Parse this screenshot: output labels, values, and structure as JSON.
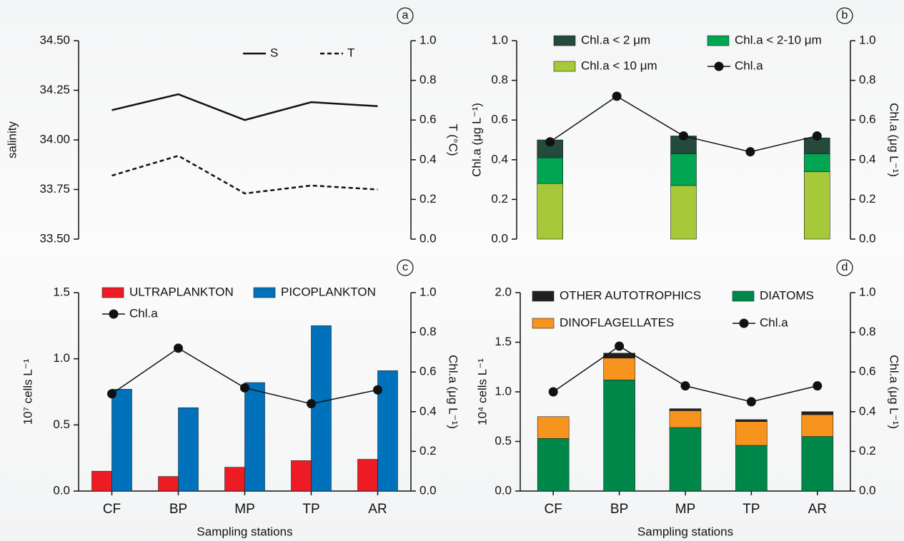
{
  "chart_data": [
    {
      "type": "line",
      "panel_label": "a",
      "categories": [
        null,
        null,
        null,
        null,
        null
      ],
      "y_label": "salinity",
      "y2_label": "T (°C)",
      "ylim": [
        33.5,
        34.5
      ],
      "yticks": [
        {
          "value": 33.5,
          "label": "33.50"
        },
        33.75,
        {
          "value": 34,
          "label": "34.00"
        },
        34.25,
        {
          "value": 34.5,
          "label": "34.50"
        }
      ],
      "y2lim": [
        0,
        1
      ],
      "y2ticks": [
        {
          "value": 0,
          "label": "0.0"
        },
        0.2,
        0.4,
        0.6,
        0.8,
        {
          "value": 1,
          "label": "1.0"
        }
      ],
      "series": [
        {
          "name": "S",
          "color": "#111111",
          "line_style": "solid",
          "values": [
            34.15,
            34.23,
            34.1,
            34.19,
            34.17
          ]
        },
        {
          "name": "T",
          "color": "#111111",
          "line_style": "dashed",
          "axis": "y2",
          "values": [
            0.32,
            0.42,
            0.23,
            0.27,
            0.25
          ]
        }
      ]
    },
    {
      "type": "bar",
      "panel_label": "b",
      "stacked": true,
      "categories": [
        null,
        null,
        null,
        null,
        null
      ],
      "y_label": "Chl.a (μg L⁻¹)",
      "y2_label": "Chl.a (μg L⁻¹)",
      "ylim": [
        0,
        1
      ],
      "yticks": [
        {
          "value": 0,
          "label": "0.0"
        },
        0.2,
        0.4,
        0.6,
        0.8,
        {
          "value": 1,
          "label": "1.0"
        }
      ],
      "y2lim": [
        0,
        1
      ],
      "y2ticks": [
        {
          "value": 0,
          "label": "0.0"
        },
        0.2,
        0.4,
        0.6,
        0.8,
        {
          "value": 1,
          "label": "1.0"
        }
      ],
      "series": [
        {
          "name": "Chl.a < 10 μm",
          "color": "#a6c93a",
          "values": [
            0.28,
            null,
            0.27,
            null,
            0.34
          ]
        },
        {
          "name": "Chl.a < 2-10 μm",
          "color": "#00a651",
          "values": [
            0.13,
            null,
            0.16,
            null,
            0.09
          ]
        },
        {
          "name": "Chl.a < 2 μm",
          "color": "#234a3a",
          "values": [
            0.09,
            null,
            0.09,
            null,
            0.08
          ]
        },
        {
          "name": "Chl.a",
          "type": "line",
          "marker": "circle",
          "axis": "y2",
          "color": "#111111",
          "values": [
            0.49,
            0.72,
            0.52,
            0.44,
            0.52
          ]
        }
      ]
    },
    {
      "type": "bar",
      "panel_label": "c",
      "stacked": false,
      "categories": [
        "CF",
        "BP",
        "MP",
        "TP",
        "AR"
      ],
      "x_label": "Sampling stations",
      "y_label": "10⁷ cells L⁻¹",
      "y2_label": "Chl.a (μg L⁻¹)",
      "ylim": [
        0,
        1.5
      ],
      "yticks": [
        {
          "value": 0,
          "label": "0.0"
        },
        0.5,
        {
          "value": 1,
          "label": "1.0"
        },
        1.5
      ],
      "y2lim": [
        0,
        1
      ],
      "y2ticks": [
        {
          "value": 0,
          "label": "0.0"
        },
        0.2,
        0.4,
        0.6,
        0.8,
        {
          "value": 1,
          "label": "1.0"
        }
      ],
      "series": [
        {
          "name": "ULTRAPLANKTON",
          "color": "#ed1c24",
          "values": [
            0.15,
            0.11,
            0.18,
            0.23,
            0.24
          ]
        },
        {
          "name": "PICOPLANKTON",
          "color": "#0072bc",
          "values": [
            0.77,
            0.63,
            0.82,
            1.25,
            0.91
          ]
        },
        {
          "name": "Chl.a",
          "type": "line",
          "marker": "circle",
          "axis": "y2",
          "color": "#111111",
          "values": [
            0.49,
            0.72,
            0.52,
            0.44,
            0.51
          ]
        }
      ]
    },
    {
      "type": "bar",
      "panel_label": "d",
      "stacked": true,
      "categories": [
        "CF",
        "BP",
        "MP",
        "TP",
        "AR"
      ],
      "x_label": "Sampling stations",
      "y_label": "10⁴ cells L⁻¹",
      "y2_label": "Chl.a (μg L⁻¹)",
      "ylim": [
        0,
        2
      ],
      "yticks": [
        {
          "value": 0,
          "label": "0.0"
        },
        0.5,
        {
          "value": 1,
          "label": "1.0"
        },
        1.5,
        {
          "value": 2,
          "label": "2.0"
        }
      ],
      "y2lim": [
        0,
        1
      ],
      "y2ticks": [
        {
          "value": 0,
          "label": "0.0"
        },
        0.2,
        0.4,
        0.6,
        0.8,
        {
          "value": 1,
          "label": "1.0"
        }
      ],
      "series": [
        {
          "name": "DIATOMS",
          "color": "#00884a",
          "values": [
            0.53,
            1.12,
            0.64,
            0.46,
            0.55
          ]
        },
        {
          "name": "DINOFLAGELLATES",
          "color": "#f7941d",
          "values": [
            0.22,
            0.22,
            0.17,
            0.24,
            0.22
          ]
        },
        {
          "name": "OTHER AUTOTROPHICS",
          "color": "#231f20",
          "values": [
            0,
            0.05,
            0.02,
            0.02,
            0.03
          ]
        },
        {
          "name": "Chl.a",
          "type": "line",
          "marker": "circle",
          "axis": "y2",
          "color": "#111111",
          "values": [
            0.5,
            0.73,
            0.53,
            0.45,
            0.53
          ]
        }
      ]
    }
  ]
}
